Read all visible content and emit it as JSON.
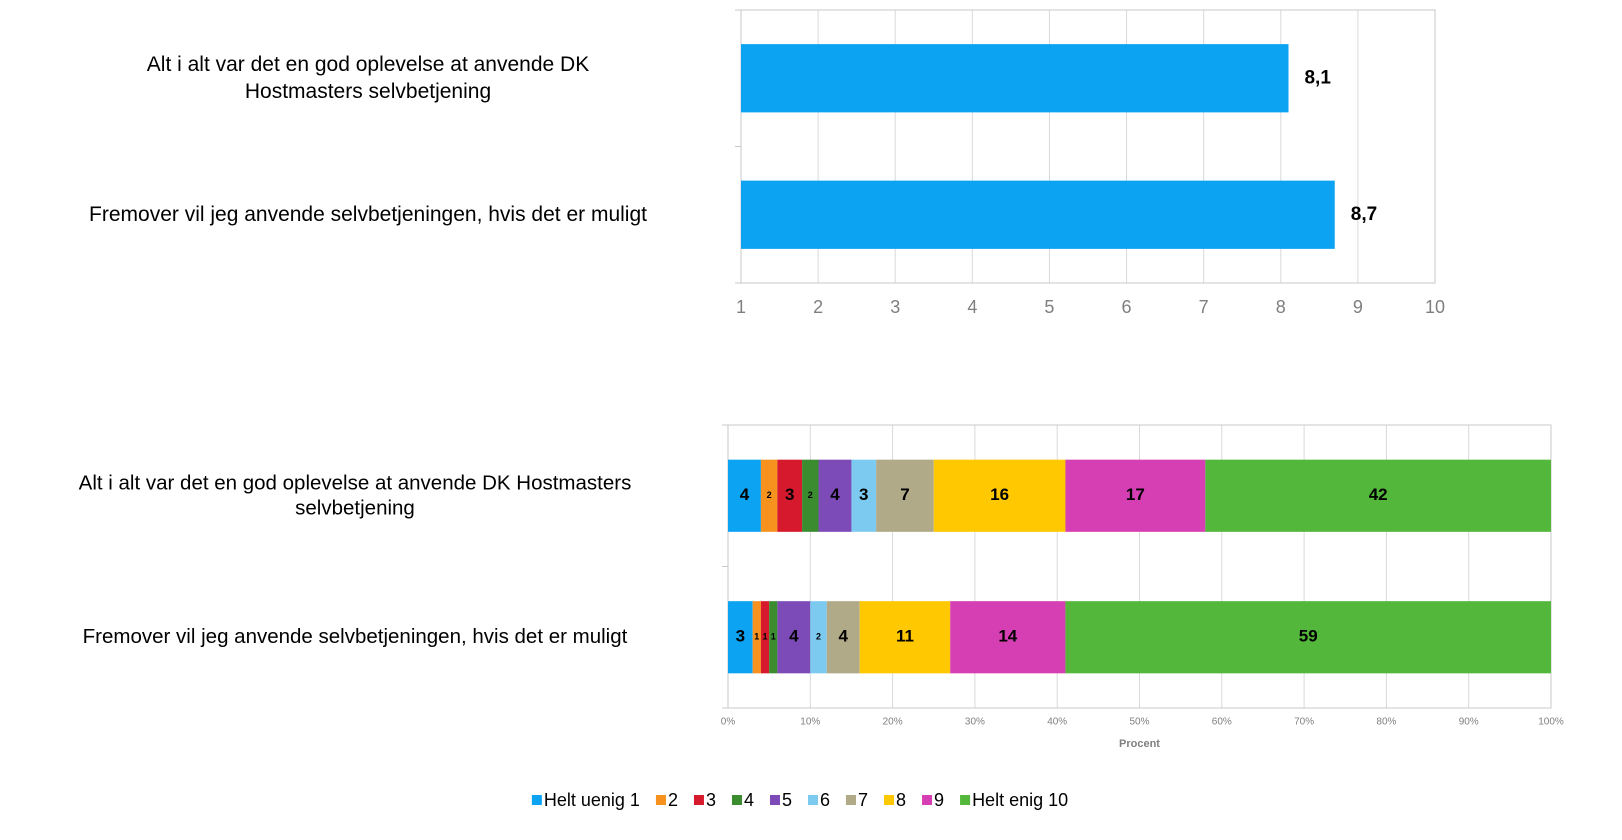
{
  "chart_data": [
    {
      "type": "bar",
      "orientation": "horizontal",
      "categories": [
        "Alt i alt var det en god oplevelse at anvende DK\nHostmasters selvbetjening",
        "Fremover vil jeg anvende selvbetjeningen, hvis det er muligt"
      ],
      "values": [
        8.1,
        8.7
      ],
      "value_labels": [
        "8,1",
        "8,7"
      ],
      "color": "#0ba3f2",
      "xlim": [
        1,
        10
      ],
      "xticks": [
        1,
        2,
        3,
        4,
        5,
        6,
        7,
        8,
        9,
        10
      ],
      "grid": true
    },
    {
      "type": "stacked_bar",
      "orientation": "horizontal",
      "categories": [
        "Alt i alt var det en god oplevelse at anvende DK Hostmasters\nselvbetjening",
        "Fremover vil jeg anvende selvbetjeningen, hvis det er muligt"
      ],
      "x_label": "Procent",
      "series": [
        {
          "name": "Helt uenig 1",
          "color": "#0ba3f2",
          "values": [
            4,
            3
          ]
        },
        {
          "name": "2",
          "color": "#f7921e",
          "values": [
            2,
            1
          ]
        },
        {
          "name": "3",
          "color": "#d7192d",
          "values": [
            3,
            1
          ]
        },
        {
          "name": "4",
          "color": "#3a8c2f",
          "values": [
            2,
            1
          ]
        },
        {
          "name": "5",
          "color": "#7d4bb8",
          "values": [
            4,
            4
          ]
        },
        {
          "name": "6",
          "color": "#7ccaf0",
          "values": [
            3,
            2
          ]
        },
        {
          "name": "7",
          "color": "#b0aa88",
          "values": [
            7,
            4
          ]
        },
        {
          "name": "8",
          "color": "#ffc800",
          "values": [
            16,
            11
          ]
        },
        {
          "name": "9",
          "color": "#d63fb3",
          "values": [
            17,
            14
          ]
        },
        {
          "name": "Helt enig 10",
          "color": "#52b73b",
          "values": [
            42,
            59
          ]
        }
      ],
      "xlim": [
        0,
        100
      ],
      "xticks": [
        {
          "value": 0,
          "label": "0%"
        },
        {
          "value": 10,
          "label": "10%"
        },
        {
          "value": 20,
          "label": "20%"
        },
        {
          "value": 30,
          "label": "30%"
        },
        {
          "value": 40,
          "label": "40%"
        },
        {
          "value": 50,
          "label": "50%"
        },
        {
          "value": 60,
          "label": "60%"
        },
        {
          "value": 70,
          "label": "70%"
        },
        {
          "value": 80,
          "label": "80%"
        },
        {
          "value": 90,
          "label": "90%"
        },
        {
          "value": 100,
          "label": "100%"
        }
      ],
      "grid": true,
      "legend": "bottom"
    }
  ]
}
